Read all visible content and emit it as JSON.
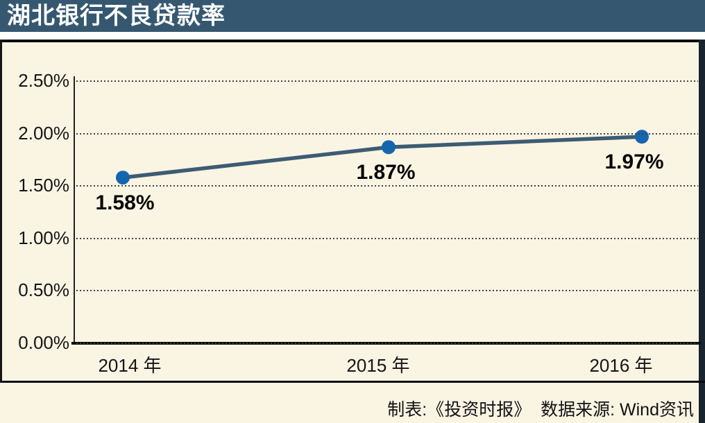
{
  "header": {
    "title": "湖北银行不良贷款率"
  },
  "footer": {
    "credit": "制表:《投资时报》  数据来源: Wind资讯"
  },
  "colors": {
    "header_bg": "#355870",
    "background": "#faf4e3",
    "line": "#3d5c74",
    "marker": "#1566ae",
    "text": "#151515",
    "rule": "#0b0b0b"
  },
  "chart_data": {
    "type": "line",
    "title": "湖北银行不良贷款率",
    "categories": [
      "2014 年",
      "2015 年",
      "2016 年"
    ],
    "series": [
      {
        "name": "不良贷款率",
        "values": [
          1.58,
          1.87,
          1.97
        ]
      }
    ],
    "data_labels": [
      "1.58%",
      "1.87%",
      "1.97%"
    ],
    "y_ticks": [
      {
        "value": 2.5,
        "label": "2.50%"
      },
      {
        "value": 2.0,
        "label": "2.00%"
      },
      {
        "value": 1.5,
        "label": "1.50%"
      },
      {
        "value": 1.0,
        "label": "1.00%"
      },
      {
        "value": 0.5,
        "label": "0.50%"
      },
      {
        "value": 0.0,
        "label": "0.00%"
      }
    ],
    "ylim": [
      0,
      2.5
    ],
    "xlabel": "",
    "ylabel": "",
    "grid": "horizontal-dotted",
    "legend": "none",
    "line_color": "#3d5c74",
    "marker_color": "#1566ae",
    "source_note": "制表:《投资时报》  数据来源: Wind资讯"
  }
}
